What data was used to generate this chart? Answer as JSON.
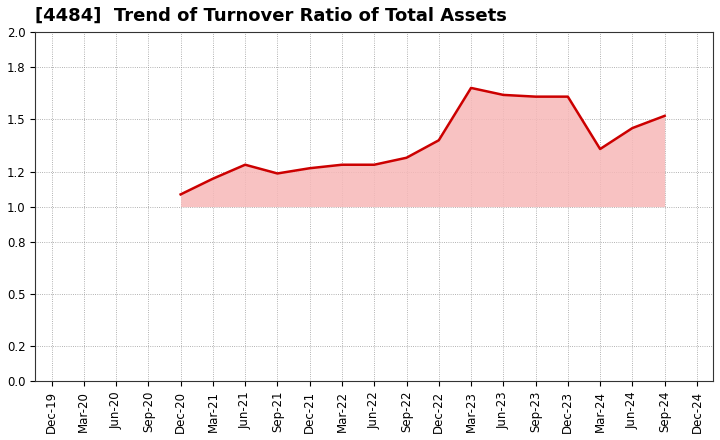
{
  "title": "[4484]  Trend of Turnover Ratio of Total Assets",
  "x_labels": [
    "Dec-19",
    "Mar-20",
    "Jun-20",
    "Sep-20",
    "Dec-20",
    "Mar-21",
    "Jun-21",
    "Sep-21",
    "Dec-21",
    "Mar-22",
    "Jun-22",
    "Sep-22",
    "Dec-22",
    "Mar-23",
    "Jun-23",
    "Sep-23",
    "Dec-23",
    "Mar-24",
    "Jun-24",
    "Sep-24",
    "Dec-24"
  ],
  "x_values": [
    0,
    1,
    2,
    3,
    4,
    5,
    6,
    7,
    8,
    9,
    10,
    11,
    12,
    13,
    14,
    15,
    16,
    17,
    18,
    19,
    20
  ],
  "y_values": [
    null,
    null,
    null,
    null,
    1.07,
    1.16,
    1.24,
    1.19,
    1.22,
    1.24,
    1.24,
    1.28,
    1.38,
    1.68,
    1.64,
    1.63,
    1.63,
    1.33,
    1.45,
    1.52,
    null
  ],
  "line_color": "#cc0000",
  "fill_color": "#f7b8b8",
  "fill_alpha": 0.85,
  "fill_baseline": 1.0,
  "ylim": [
    0.0,
    2.0
  ],
  "yticks": [
    0.0,
    0.2,
    0.5,
    0.8,
    1.0,
    1.2,
    1.5,
    1.8,
    2.0
  ],
  "background_color": "#ffffff",
  "grid_color": "#999999",
  "title_fontsize": 13,
  "tick_fontsize": 8.5,
  "line_width": 1.8
}
